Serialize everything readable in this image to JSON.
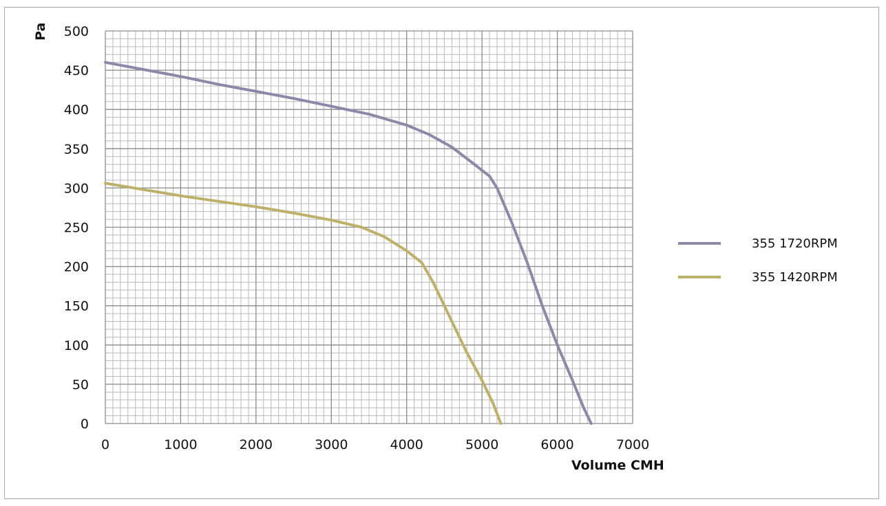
{
  "chart_data": {
    "type": "line",
    "xlabel": "Volume CMH",
    "ylabel": "Pa",
    "xlim": [
      0,
      7000
    ],
    "ylim": [
      0,
      500
    ],
    "x_ticks": [
      "0",
      "1000",
      "2000",
      "3000",
      "4000",
      "5000",
      "6000",
      "7000"
    ],
    "y_ticks": [
      "0",
      "50",
      "100",
      "150",
      "200",
      "250",
      "300",
      "350",
      "400",
      "450",
      "500"
    ],
    "grid": true,
    "legend_position": "right",
    "series": [
      {
        "name": "355 1720RPM",
        "color": "#8a89a8",
        "points": [
          [
            0,
            460
          ],
          [
            500,
            451
          ],
          [
            1000,
            442
          ],
          [
            1500,
            432
          ],
          [
            2000,
            423
          ],
          [
            2500,
            414
          ],
          [
            3000,
            404
          ],
          [
            3500,
            394
          ],
          [
            4000,
            380
          ],
          [
            4300,
            368
          ],
          [
            4600,
            352
          ],
          [
            4900,
            330
          ],
          [
            5100,
            315
          ],
          [
            5200,
            300
          ],
          [
            5400,
            255
          ],
          [
            5600,
            205
          ],
          [
            5800,
            150
          ],
          [
            6000,
            100
          ],
          [
            6200,
            55
          ],
          [
            6350,
            20
          ],
          [
            6450,
            0
          ]
        ]
      },
      {
        "name": "355 1420RPM",
        "color": "#bdb16a",
        "points": [
          [
            0,
            306
          ],
          [
            500,
            298
          ],
          [
            1000,
            290
          ],
          [
            1500,
            283
          ],
          [
            2000,
            276
          ],
          [
            2500,
            268
          ],
          [
            3000,
            259
          ],
          [
            3400,
            250
          ],
          [
            3700,
            238
          ],
          [
            4000,
            220
          ],
          [
            4200,
            205
          ],
          [
            4350,
            180
          ],
          [
            4550,
            140
          ],
          [
            4800,
            90
          ],
          [
            5000,
            55
          ],
          [
            5150,
            25
          ],
          [
            5250,
            0
          ]
        ]
      }
    ]
  }
}
